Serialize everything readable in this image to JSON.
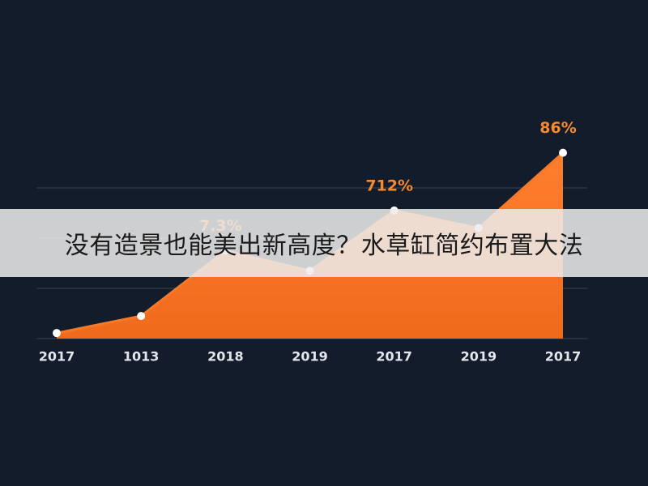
{
  "chart_data": {
    "type": "area",
    "categories": [
      "2017",
      "1013",
      "2018",
      "2019",
      "2017",
      "2019",
      "2017"
    ],
    "values": [
      0.11,
      0.45,
      1.75,
      1.35,
      2.55,
      2.2,
      3.7
    ],
    "color": "#f47a2a",
    "ylim": [
      0,
      4
    ],
    "yticks": [
      0,
      1,
      2,
      3
    ],
    "grid": true,
    "annotations": [
      {
        "text": "7.3%",
        "point": 2
      },
      {
        "text": "712%",
        "point": 4
      },
      {
        "text": "86%",
        "point": 6
      }
    ]
  },
  "banner": {
    "text": "没有造景也能美出新高度？水草缸简约布置大法"
  }
}
